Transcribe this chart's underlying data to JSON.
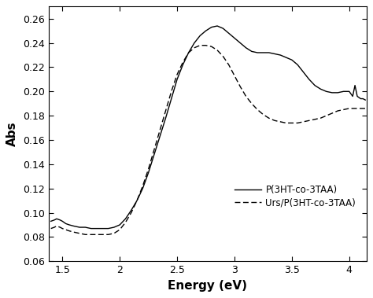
{
  "xlabel": "Energy (eV)",
  "ylabel": "Abs",
  "xlim": [
    1.38,
    4.15
  ],
  "ylim": [
    0.06,
    0.27
  ],
  "xticks": [
    1.5,
    2.0,
    2.5,
    3.0,
    3.5,
    4.0
  ],
  "yticks": [
    0.06,
    0.08,
    0.1,
    0.12,
    0.14,
    0.16,
    0.18,
    0.2,
    0.22,
    0.24,
    0.26
  ],
  "legend": [
    "P(3HT-co-3TAA)",
    "Urs/P(3HT-co-3TAA)"
  ],
  "line1_color": "#000000",
  "line2_color": "#000000",
  "background_color": "#ffffff",
  "solid_x": [
    1.4,
    1.43,
    1.45,
    1.48,
    1.5,
    1.53,
    1.56,
    1.6,
    1.65,
    1.7,
    1.75,
    1.8,
    1.85,
    1.9,
    1.95,
    2.0,
    2.05,
    2.1,
    2.15,
    2.2,
    2.25,
    2.3,
    2.35,
    2.4,
    2.45,
    2.5,
    2.55,
    2.6,
    2.65,
    2.7,
    2.75,
    2.8,
    2.85,
    2.9,
    2.95,
    3.0,
    3.05,
    3.1,
    3.15,
    3.2,
    3.25,
    3.3,
    3.35,
    3.4,
    3.45,
    3.5,
    3.55,
    3.6,
    3.65,
    3.7,
    3.75,
    3.8,
    3.85,
    3.9,
    3.95,
    4.0,
    4.03,
    4.05,
    4.07,
    4.1,
    4.12,
    4.14
  ],
  "solid_y": [
    0.093,
    0.094,
    0.095,
    0.094,
    0.093,
    0.091,
    0.09,
    0.089,
    0.088,
    0.088,
    0.087,
    0.087,
    0.087,
    0.087,
    0.088,
    0.09,
    0.095,
    0.102,
    0.11,
    0.12,
    0.133,
    0.148,
    0.163,
    0.178,
    0.194,
    0.21,
    0.222,
    0.232,
    0.24,
    0.246,
    0.25,
    0.253,
    0.254,
    0.252,
    0.248,
    0.244,
    0.24,
    0.236,
    0.233,
    0.232,
    0.232,
    0.232,
    0.231,
    0.23,
    0.228,
    0.226,
    0.222,
    0.216,
    0.21,
    0.205,
    0.202,
    0.2,
    0.199,
    0.199,
    0.2,
    0.2,
    0.196,
    0.205,
    0.196,
    0.194,
    0.194,
    0.193
  ],
  "dashed_x": [
    1.4,
    1.43,
    1.45,
    1.48,
    1.5,
    1.53,
    1.56,
    1.6,
    1.65,
    1.7,
    1.75,
    1.8,
    1.85,
    1.9,
    1.95,
    2.0,
    2.05,
    2.1,
    2.15,
    2.2,
    2.25,
    2.3,
    2.35,
    2.4,
    2.45,
    2.5,
    2.55,
    2.6,
    2.65,
    2.7,
    2.75,
    2.8,
    2.85,
    2.9,
    2.95,
    3.0,
    3.05,
    3.1,
    3.15,
    3.2,
    3.25,
    3.3,
    3.35,
    3.4,
    3.45,
    3.5,
    3.55,
    3.6,
    3.65,
    3.7,
    3.75,
    3.8,
    3.85,
    3.9,
    3.95,
    4.0,
    4.05,
    4.1,
    4.14
  ],
  "dashed_y": [
    0.087,
    0.088,
    0.089,
    0.088,
    0.087,
    0.086,
    0.085,
    0.084,
    0.083,
    0.082,
    0.082,
    0.082,
    0.082,
    0.082,
    0.083,
    0.086,
    0.092,
    0.1,
    0.11,
    0.122,
    0.136,
    0.152,
    0.168,
    0.184,
    0.2,
    0.214,
    0.224,
    0.232,
    0.236,
    0.238,
    0.238,
    0.237,
    0.234,
    0.229,
    0.222,
    0.213,
    0.204,
    0.196,
    0.19,
    0.185,
    0.181,
    0.178,
    0.176,
    0.175,
    0.174,
    0.174,
    0.174,
    0.175,
    0.176,
    0.177,
    0.178,
    0.18,
    0.182,
    0.184,
    0.185,
    0.186,
    0.186,
    0.186,
    0.186
  ]
}
